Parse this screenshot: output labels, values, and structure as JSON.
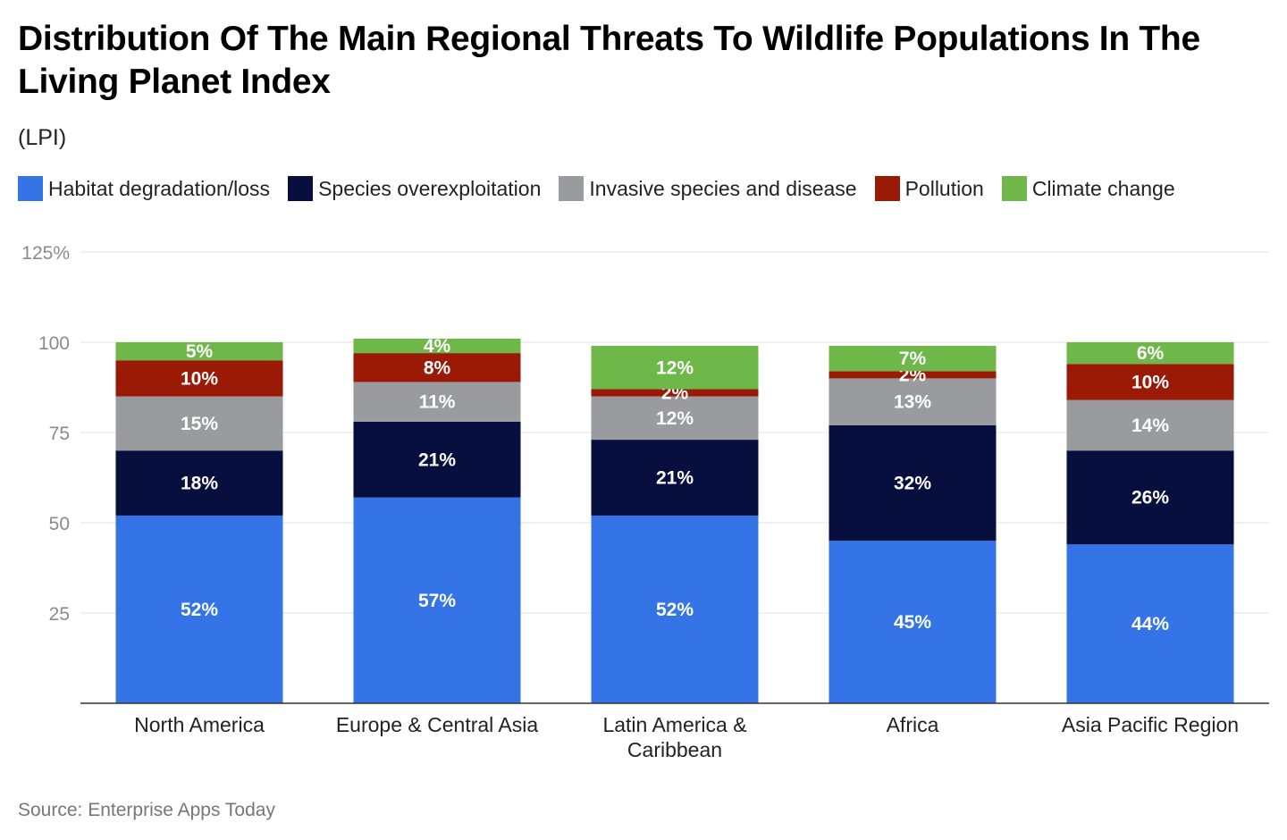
{
  "title": "Distribution Of The Main Regional Threats To Wildlife Populations In The Living Planet Index",
  "subtitle": "(LPI)",
  "source": "Source: Enterprise Apps Today",
  "chart_data": {
    "type": "bar",
    "stacked": true,
    "categories": [
      "North America",
      "Europe & Central Asia",
      "Latin America & Caribbean",
      "Africa",
      "Asia Pacific Region"
    ],
    "series": [
      {
        "name": "Habitat degradation/loss",
        "color": "#3474E6",
        "values": [
          52,
          57,
          52,
          45,
          44
        ]
      },
      {
        "name": "Species overexploitation",
        "color": "#070F3E",
        "values": [
          18,
          21,
          21,
          32,
          26
        ]
      },
      {
        "name": "Invasive species and disease",
        "color": "#9A9B9F",
        "values": [
          15,
          11,
          12,
          13,
          14
        ]
      },
      {
        "name": "Pollution",
        "color": "#9B1A05",
        "values": [
          10,
          8,
          2,
          2,
          10
        ]
      },
      {
        "name": "Climate change",
        "color": "#6DB848",
        "values": [
          5,
          4,
          12,
          7,
          6
        ]
      }
    ],
    "yticks": [
      "25",
      "50",
      "75",
      "100",
      "125%"
    ],
    "ytick_values": [
      25,
      50,
      75,
      100,
      125
    ],
    "ylim": [
      0,
      125
    ],
    "legend": "top-left",
    "grid": true
  }
}
